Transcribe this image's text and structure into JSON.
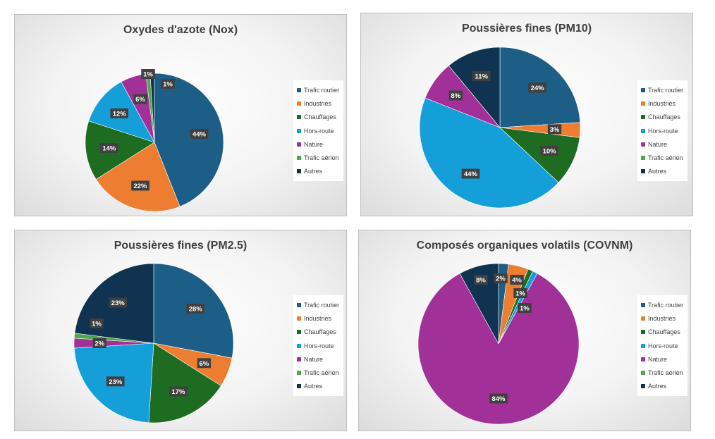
{
  "colors": {
    "Trafic routier": "#1c5e86",
    "Industries": "#ed7d31",
    "Chauffages": "#1e6b22",
    "Hors-route": "#159fd9",
    "Nature": "#a13199",
    "Trafic aérien": "#4ea84e",
    "Autres": "#0f3350"
  },
  "legend_labels": [
    "Trafic routier",
    "Industries",
    "Chauffages",
    "Hors-route",
    "Nature",
    "Trafic aérien",
    "Autres"
  ],
  "chart_data": [
    {
      "type": "pie",
      "title": "Oxydes d'azote (Nox)",
      "legend": "right",
      "slices": [
        {
          "name": "Trafic routier",
          "value": 44,
          "label": "44%"
        },
        {
          "name": "Industries",
          "value": 22,
          "label": "22%"
        },
        {
          "name": "Chauffages",
          "value": 14,
          "label": "14%"
        },
        {
          "name": "Hors-route",
          "value": 12,
          "label": "12%"
        },
        {
          "name": "Nature",
          "value": 6,
          "label": "6%"
        },
        {
          "name": "Trafic aérien",
          "value": 1,
          "label": "1%"
        },
        {
          "name": "Autres",
          "value": 1,
          "label": "1%"
        }
      ]
    },
    {
      "type": "pie",
      "title": "Poussières fines (PM10)",
      "legend": "right",
      "slices": [
        {
          "name": "Trafic routier",
          "value": 24,
          "label": "24%"
        },
        {
          "name": "Industries",
          "value": 3,
          "label": "3%"
        },
        {
          "name": "Chauffages",
          "value": 10,
          "label": "10%"
        },
        {
          "name": "Hors-route",
          "value": 44,
          "label": "44%"
        },
        {
          "name": "Nature",
          "value": 8,
          "label": "8%"
        },
        {
          "name": "Trafic aérien",
          "value": 0,
          "label": ""
        },
        {
          "name": "Autres",
          "value": 11,
          "label": "11%"
        }
      ]
    },
    {
      "type": "pie",
      "title": "Poussières fines (PM2.5)",
      "legend": "right",
      "slices": [
        {
          "name": "Trafic routier",
          "value": 28,
          "label": "28%"
        },
        {
          "name": "Industries",
          "value": 6,
          "label": "6%"
        },
        {
          "name": "Chauffages",
          "value": 17,
          "label": "17%"
        },
        {
          "name": "Hors-route",
          "value": 23,
          "label": "23%"
        },
        {
          "name": "Nature",
          "value": 2,
          "label": "2%"
        },
        {
          "name": "Trafic aérien",
          "value": 1,
          "label": "1%"
        },
        {
          "name": "Autres",
          "value": 23,
          "label": "23%"
        }
      ]
    },
    {
      "type": "pie",
      "title": "Composés organiques volatils (COVNM)",
      "legend": "right",
      "slices": [
        {
          "name": "Trafic routier",
          "value": 2,
          "label": "2%"
        },
        {
          "name": "Industries",
          "value": 4,
          "label": "4%"
        },
        {
          "name": "Chauffages",
          "value": 1,
          "label": "1%"
        },
        {
          "name": "Hors-route",
          "value": 1,
          "label": "1%"
        },
        {
          "name": "Nature",
          "value": 84,
          "label": "84%"
        },
        {
          "name": "Trafic aérien",
          "value": 0,
          "label": ""
        },
        {
          "name": "Autres",
          "value": 8,
          "label": "8%"
        }
      ]
    }
  ]
}
